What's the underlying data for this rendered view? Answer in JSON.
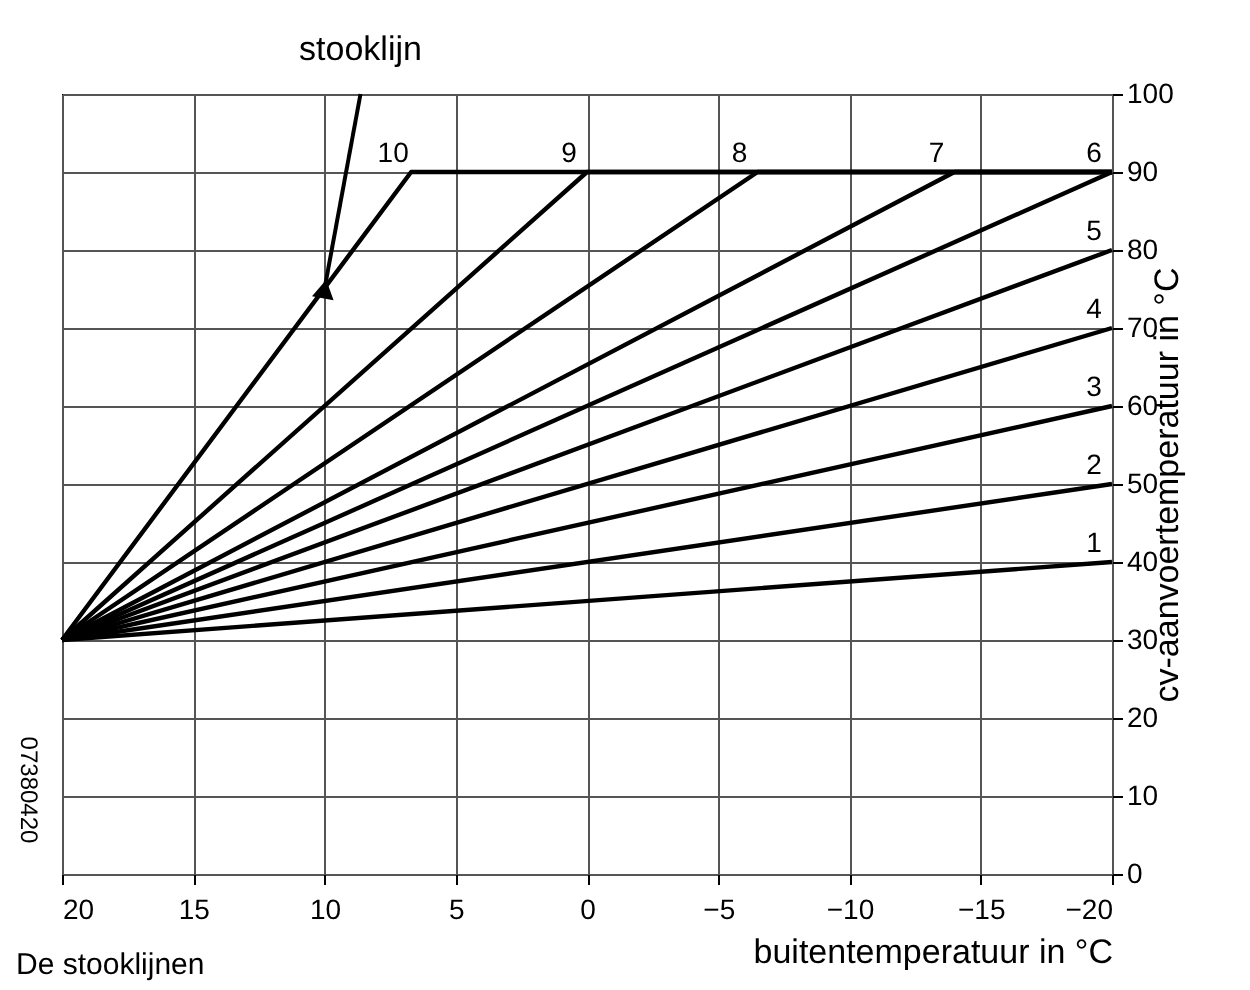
{
  "chart_data": {
    "type": "line",
    "xlabel": "buitentemperatuur in °C",
    "ylabel": "cv-aanvoertemperatuur in °C",
    "xlim": [
      20,
      -20
    ],
    "xticks": [
      20,
      15,
      10,
      5,
      0,
      -5,
      -10,
      -15,
      -20
    ],
    "ylim": [
      0,
      100
    ],
    "yticks": [
      0,
      10,
      20,
      30,
      40,
      50,
      60,
      70,
      80,
      90,
      100
    ],
    "grid": true,
    "legend": false,
    "line_style": "solid",
    "series": [
      {
        "name": "1",
        "color": "#000000",
        "x": [
          20,
          -20
        ],
        "values": [
          30,
          40
        ]
      },
      {
        "name": "2",
        "color": "#000000",
        "x": [
          20,
          -20
        ],
        "values": [
          30,
          50
        ]
      },
      {
        "name": "3",
        "color": "#000000",
        "x": [
          20,
          -20
        ],
        "values": [
          30,
          60
        ]
      },
      {
        "name": "4",
        "color": "#000000",
        "x": [
          20,
          -20
        ],
        "values": [
          30,
          70
        ]
      },
      {
        "name": "5",
        "color": "#000000",
        "x": [
          20,
          -20
        ],
        "values": [
          30,
          80
        ]
      },
      {
        "name": "6",
        "color": "#000000",
        "x": [
          20,
          -20
        ],
        "values": [
          30,
          90
        ]
      },
      {
        "name": "7",
        "color": "#000000",
        "x": [
          20,
          -14,
          -20
        ],
        "values": [
          30,
          90,
          90
        ]
      },
      {
        "name": "8",
        "color": "#000000",
        "x": [
          20,
          -6.5,
          -20
        ],
        "values": [
          30,
          90,
          90
        ]
      },
      {
        "name": "9",
        "color": "#000000",
        "x": [
          20,
          0,
          -20
        ],
        "values": [
          30,
          90,
          90
        ]
      },
      {
        "name": "10",
        "color": "#000000",
        "x": [
          20,
          6.7,
          -20
        ],
        "values": [
          30,
          90,
          90
        ]
      }
    ],
    "annotations": [
      {
        "text": "stooklijn",
        "x": 10,
        "y": 75
      },
      "De stooklijnen",
      "07380420"
    ]
  }
}
